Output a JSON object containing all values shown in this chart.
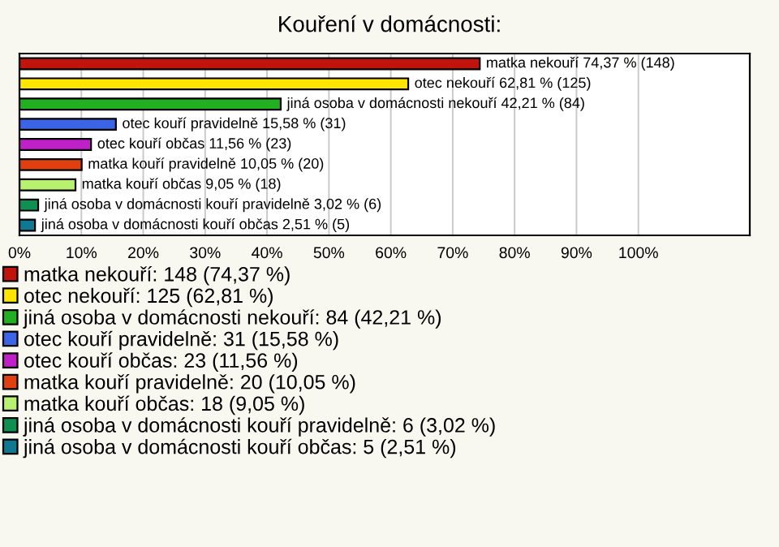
{
  "chart_data": {
    "type": "bar",
    "orientation": "horizontal",
    "title": "Kouření v domácnosti:",
    "categories": [
      null,
      null,
      null,
      null,
      null,
      null,
      null,
      null,
      null
    ],
    "series": [
      {
        "name": "matka nekouří: 148 (74,37 %)",
        "color": "#c0140c",
        "values": [
          74.37,
          null,
          null,
          null,
          null,
          null,
          null,
          null,
          null
        ],
        "value_labels": [
          "matka nekouří 74,37 % (148)",
          null,
          null,
          null,
          null,
          null,
          null,
          null,
          null
        ]
      },
      {
        "name": "otec nekouří: 125 (62,81 %)",
        "color": "#ffe600",
        "values": [
          null,
          62.81,
          null,
          null,
          null,
          null,
          null,
          null,
          null
        ],
        "value_labels": [
          null,
          "otec nekouří 62,81 % (125)",
          null,
          null,
          null,
          null,
          null,
          null,
          null
        ]
      },
      {
        "name": "jiná osoba v domácnosti nekouří: 84 (42,21 %)",
        "color": "#22b022",
        "values": [
          null,
          null,
          42.21,
          null,
          null,
          null,
          null,
          null,
          null
        ],
        "value_labels": [
          null,
          null,
          "jiná osoba v domácnosti nekouří 42,21 % (84)",
          null,
          null,
          null,
          null,
          null,
          null
        ]
      },
      {
        "name": "otec kouří pravidelně: 31 (15,58 %)",
        "color": "#3c64e6",
        "values": [
          null,
          null,
          null,
          15.58,
          null,
          null,
          null,
          null,
          null
        ],
        "value_labels": [
          null,
          null,
          null,
          "otec kouří pravidelně 15,58 % (31)",
          null,
          null,
          null,
          null,
          null
        ]
      },
      {
        "name": "otec kouří občas: 23 (11,56 %)",
        "color": "#c020c8",
        "values": [
          null,
          null,
          null,
          null,
          11.56,
          null,
          null,
          null,
          null
        ],
        "value_labels": [
          null,
          null,
          null,
          null,
          "otec kouří občas 11,56 % (23)",
          null,
          null,
          null,
          null
        ]
      },
      {
        "name": "matka kouří pravidelně: 20 (10,05 %)",
        "color": "#e04010",
        "values": [
          null,
          null,
          null,
          null,
          null,
          10.05,
          null,
          null,
          null
        ],
        "value_labels": [
          null,
          null,
          null,
          null,
          null,
          "matka kouří pravidelně 10,05 % (20)",
          null,
          null,
          null
        ]
      },
      {
        "name": "matka kouří občas: 18 (9,05 %)",
        "color": "#b8f070",
        "values": [
          null,
          null,
          null,
          null,
          null,
          null,
          9.05,
          null,
          null
        ],
        "value_labels": [
          null,
          null,
          null,
          null,
          null,
          null,
          "matka kouří občas 9,05 % (18)",
          null,
          null
        ]
      },
      {
        "name": "jiná osoba v domácnosti kouří pravidelně: 6 (3,02 %)",
        "color": "#109050",
        "values": [
          null,
          null,
          null,
          null,
          null,
          null,
          null,
          3.02,
          null
        ],
        "value_labels": [
          null,
          null,
          null,
          null,
          null,
          null,
          null,
          "jiná osoba v domácnosti kouří pravidelně 3,02 % (6)",
          null
        ]
      },
      {
        "name": "jiná osoba v domácnosti kouří občas: 5 (2,51 %)",
        "color": "#107890",
        "values": [
          null,
          null,
          null,
          null,
          null,
          null,
          null,
          null,
          2.51
        ],
        "value_labels": [
          null,
          null,
          null,
          null,
          null,
          null,
          null,
          null,
          "jiná osoba v domácnosti kouří občas 2,51 % (5)"
        ]
      }
    ],
    "xlim": [
      0,
      118
    ],
    "xticks": [
      {
        "value": 0,
        "label": "0%"
      },
      {
        "value": 10,
        "label": "10%"
      },
      {
        "value": 20,
        "label": "20%"
      },
      {
        "value": 30,
        "label": "30%"
      },
      {
        "value": 40,
        "label": "40%"
      },
      {
        "value": 50,
        "label": "50%"
      },
      {
        "value": 60,
        "label": "60%"
      },
      {
        "value": 70,
        "label": "70%"
      },
      {
        "value": 80,
        "label": "80%"
      },
      {
        "value": 90,
        "label": "90%"
      },
      {
        "value": 100,
        "label": "100%"
      }
    ],
    "grid": "x",
    "legend": "bottom"
  }
}
